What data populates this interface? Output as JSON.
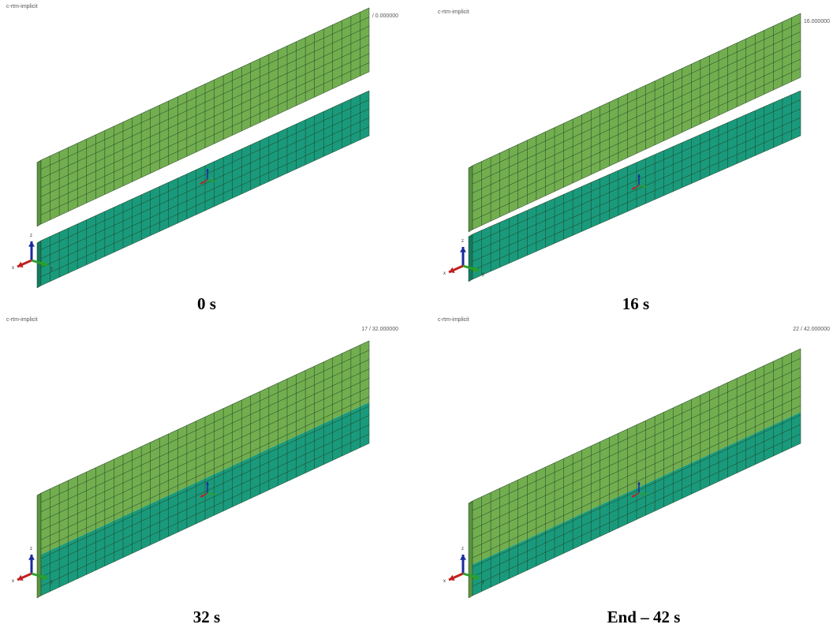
{
  "panels": [
    {
      "header": "c-rtm-implicit",
      "step": "/ 0.000000",
      "caption": "0 s"
    },
    {
      "header": "c-rtm-implicit",
      "step": "16.000000",
      "caption": "16 s"
    },
    {
      "header": "c-rtm-implicit",
      "step": "17 / 32.000000",
      "caption": "32 s"
    },
    {
      "header": "c-rtm-implicit",
      "step": "22 / 42.000000",
      "caption": "End – 42 s"
    }
  ],
  "triad_labels": {
    "z": "z",
    "x": "x",
    "y": "y"
  }
}
